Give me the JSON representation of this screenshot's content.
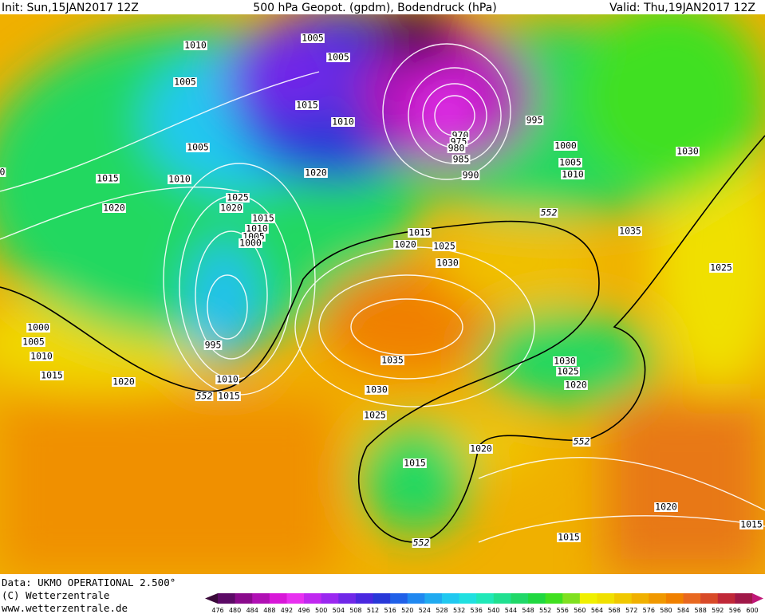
{
  "header": {
    "init": "Init: Sun,15JAN2017 12Z",
    "title": "500 hPa Geopot. (gpdm), Bodendruck (hPa)",
    "valid": "Valid: Thu,19JAN2017 12Z"
  },
  "footer": {
    "data": "Data: UKMO OPERATIONAL 2.500°",
    "copyright": "(C) Wetterzentrale",
    "url": "www.wetterzentrale.de"
  },
  "isobar_labels": [
    "1010",
    "1005",
    "1005",
    "1005",
    "1015",
    "1010",
    "1005",
    "1020",
    "1015",
    "1010",
    "1025",
    "1020",
    "1020",
    "1015",
    "1010",
    "1005",
    "1000",
    "1000",
    "1005",
    "1010",
    "995",
    "1015",
    "1020",
    "1010",
    "1015",
    "552",
    "970",
    "975",
    "980",
    "985",
    "990",
    "995",
    "1000",
    "1005",
    "1010",
    "1030",
    "552",
    "1015",
    "1020",
    "1025",
    "1030",
    "1035",
    "1025",
    "1035",
    "1030",
    "1025",
    "1030",
    "1025",
    "1020",
    "552",
    "1020",
    "1015",
    "1020",
    "1015",
    "1015",
    "552",
    "0"
  ],
  "colorbar": {
    "ticks": [
      476,
      480,
      484,
      488,
      492,
      496,
      500,
      504,
      508,
      512,
      516,
      520,
      524,
      528,
      532,
      536,
      540,
      544,
      548,
      552,
      556,
      560,
      564,
      568,
      572,
      576,
      580,
      584,
      588,
      592,
      596,
      600
    ],
    "colors": [
      "#3a0a3a",
      "#5c0a66",
      "#8a0a8c",
      "#b010b4",
      "#d818d8",
      "#e830f0",
      "#c028f0",
      "#9a28f0",
      "#7028e8",
      "#4a28e0",
      "#2838d8",
      "#2060e8",
      "#2088f0",
      "#20aaf0",
      "#20c8f0",
      "#20e0e0",
      "#20e8b8",
      "#20e090",
      "#20d868",
      "#20d840",
      "#40e020",
      "#80e020",
      "#f0f000",
      "#f0e000",
      "#f0c800",
      "#f0b000",
      "#f09800",
      "#f08000",
      "#e86820",
      "#d84a28",
      "#c02838",
      "#a01848",
      "#c01878"
    ]
  }
}
